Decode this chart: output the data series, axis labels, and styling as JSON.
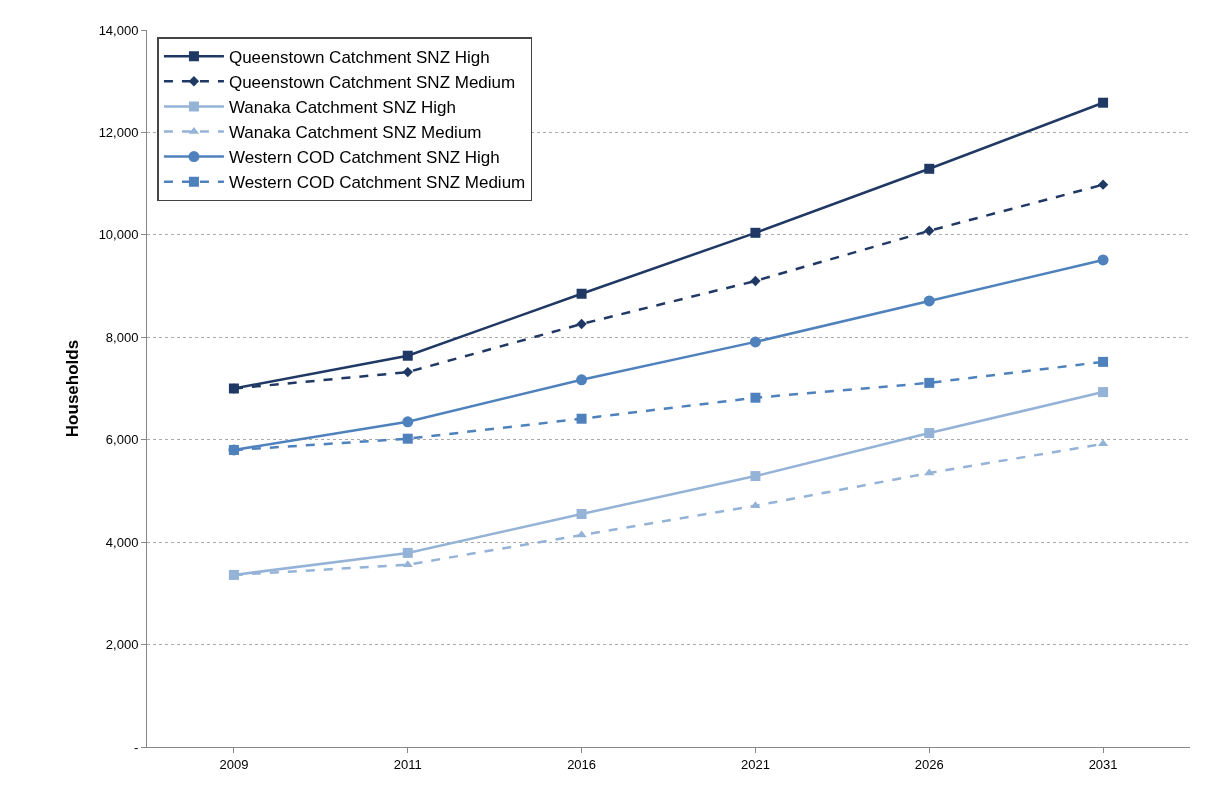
{
  "chart_data": {
    "type": "line",
    "ylabel": "Households",
    "categories": [
      "2009",
      "2011",
      "2016",
      "2021",
      "2026",
      "2031"
    ],
    "series": [
      {
        "name": "Queenstown Catchment SNZ High",
        "color": "#1f3864",
        "marker": "square",
        "line_style": "solid",
        "values": [
          7000,
          7640,
          8850,
          10040,
          11290,
          12580
        ]
      },
      {
        "name": "Queenstown Catchment SNZ Medium",
        "color": "#1f3864",
        "marker": "diamond",
        "line_style": "dashed",
        "values": [
          7000,
          7320,
          8260,
          9100,
          10080,
          10980
        ]
      },
      {
        "name": "Wanaka Catchment SNZ High",
        "color": "#95b3d7",
        "marker": "square",
        "line_style": "solid",
        "values": [
          3360,
          3790,
          4550,
          5290,
          6130,
          6930
        ]
      },
      {
        "name": "Wanaka Catchment SNZ Medium",
        "color": "#95b3d7",
        "marker": "triangle",
        "line_style": "dashed",
        "values": [
          3360,
          3560,
          4140,
          4710,
          5350,
          5920
        ]
      },
      {
        "name": "Western COD Catchment SNZ High",
        "color": "#4f81bd",
        "marker": "circle",
        "line_style": "solid",
        "values": [
          5800,
          6350,
          7170,
          7910,
          8710,
          9510
        ]
      },
      {
        "name": "Western COD Catchment SNZ Medium",
        "color": "#4f81bd",
        "marker": "square",
        "line_style": "dashed",
        "values": [
          5800,
          6020,
          6410,
          6820,
          7110,
          7520
        ]
      }
    ],
    "ylim": [
      0,
      14000
    ],
    "yticks": [
      {
        "value": 0,
        "label": "-"
      },
      {
        "value": 2000,
        "label": "2,000"
      },
      {
        "value": 4000,
        "label": "4,000"
      },
      {
        "value": 6000,
        "label": "6,000"
      },
      {
        "value": 8000,
        "label": "8,000"
      },
      {
        "value": 10000,
        "label": "10,000"
      },
      {
        "value": 12000,
        "label": "12,000"
      },
      {
        "value": 14000,
        "label": "14,000"
      }
    ],
    "grid": "y",
    "legend": "top left"
  }
}
